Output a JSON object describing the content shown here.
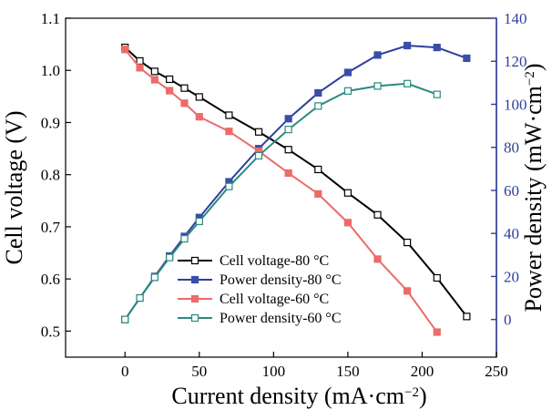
{
  "chart_data": {
    "type": "line",
    "xlabel": "Current density (mA·cm",
    "xlabel_sup": "−2",
    "xlabel_close": ")",
    "ylabel_left": "Cell voltage (V)",
    "ylabel_right": "Power density (mW·cm",
    "ylabel_right_sup": "−2",
    "ylabel_right_close": ")",
    "xlim": [
      -40,
      250
    ],
    "ylim_left": [
      0.45,
      1.1
    ],
    "ylim_right": [
      -17.5,
      140
    ],
    "x_ticks": [
      0,
      50,
      100,
      150,
      200,
      250
    ],
    "y_left_ticks": [
      0.5,
      0.6,
      0.7,
      0.8,
      0.9,
      1.0,
      1.1
    ],
    "y_left_tick_labels": [
      "0.5",
      "0.6",
      "0.7",
      "0.8",
      "0.9",
      "1.0",
      "1.1"
    ],
    "y_right_ticks": [
      0,
      20,
      40,
      60,
      80,
      100,
      120,
      140
    ],
    "legend_position": "bottom-left",
    "right_axis_color": "#2e3f9c",
    "series": [
      {
        "name": "Cell voltage-80 °C",
        "axis": "left",
        "line_color": "#000000",
        "marker": "open-square",
        "marker_color": "#000000",
        "x": [
          0,
          10,
          20,
          30,
          40,
          50,
          70,
          90,
          110,
          130,
          150,
          170,
          190,
          210,
          230
        ],
        "values": [
          1.044,
          1.018,
          0.998,
          0.983,
          0.966,
          0.949,
          0.914,
          0.882,
          0.848,
          0.81,
          0.765,
          0.723,
          0.67,
          0.602,
          0.528
        ]
      },
      {
        "name": "Power density-80 °C",
        "axis": "right",
        "line_color": "#2e3f9c",
        "marker": "filled-square",
        "marker_color": "#3a4ea8",
        "x": [
          0,
          10,
          20,
          30,
          40,
          50,
          70,
          90,
          110,
          130,
          150,
          170,
          190,
          210,
          230
        ],
        "values": [
          0,
          10,
          20,
          29.5,
          38.6,
          47.4,
          64,
          79.4,
          93.3,
          105.3,
          114.8,
          122.9,
          127.3,
          126.4,
          121.4
        ]
      },
      {
        "name": "Cell voltage-60 °C",
        "axis": "left",
        "line_color": "#ec6b6b",
        "marker": "filled-square",
        "marker_color": "#ec6b6b",
        "x": [
          0,
          10,
          20,
          30,
          40,
          50,
          70,
          90,
          110,
          130,
          150,
          170,
          190,
          210
        ],
        "values": [
          1.04,
          1.005,
          0.982,
          0.961,
          0.937,
          0.911,
          0.883,
          0.845,
          0.803,
          0.763,
          0.708,
          0.638,
          0.577,
          0.498
        ]
      },
      {
        "name": "Power density-60 °C",
        "axis": "right",
        "line_color": "#2a8a80",
        "marker": "open-square",
        "marker_color": "#2a8a80",
        "x": [
          0,
          10,
          20,
          30,
          40,
          50,
          70,
          90,
          110,
          130,
          150,
          170,
          190,
          210
        ],
        "values": [
          0,
          10,
          19.6,
          28.8,
          37.5,
          45.6,
          61.8,
          76.1,
          88.3,
          99.2,
          106.2,
          108.5,
          109.6,
          104.6
        ]
      }
    ]
  }
}
